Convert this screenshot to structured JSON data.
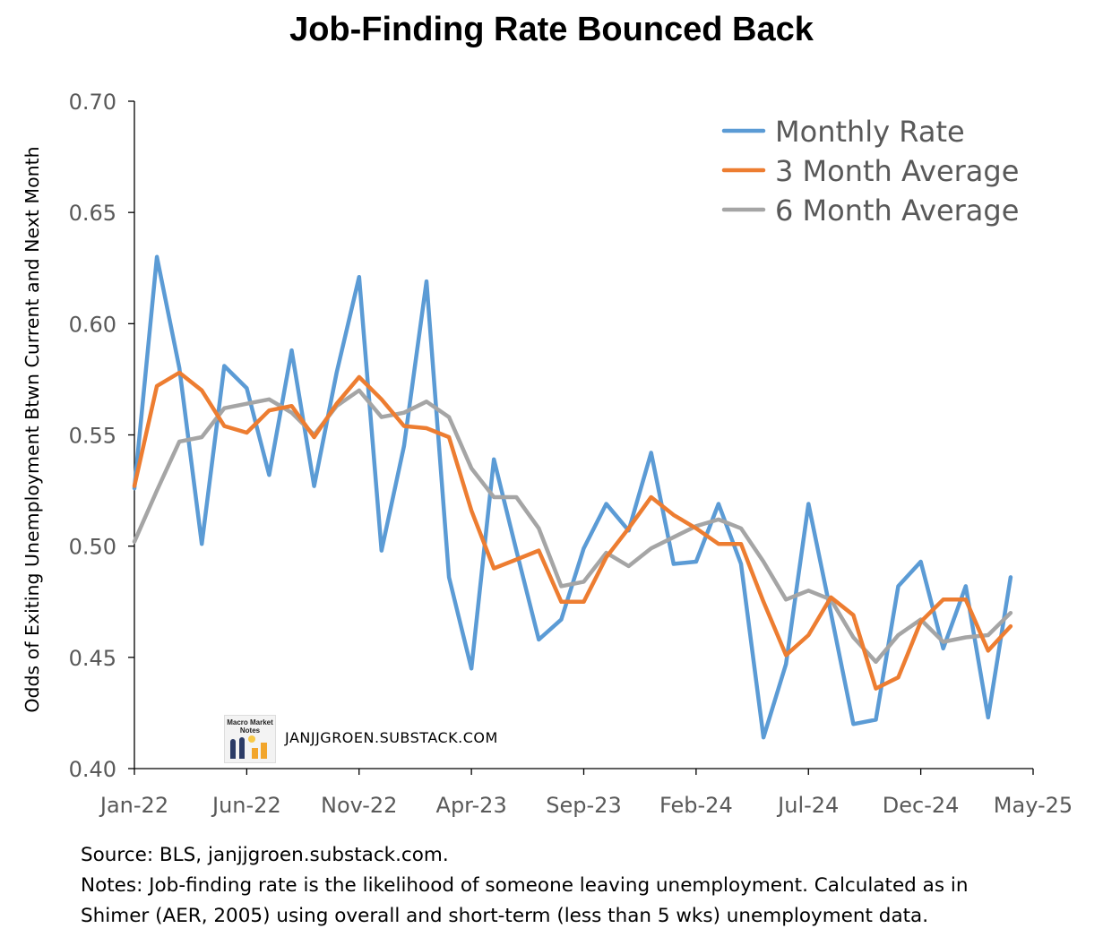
{
  "chart_data": {
    "type": "line",
    "title": "Job-Finding Rate Bounced Back",
    "ylabel": "Odds of Exiting Unemployment Btwn Current and Next Month",
    "xlabel": "",
    "ylim": [
      0.4,
      0.7
    ],
    "yticks": [
      "0.40",
      "0.45",
      "0.50",
      "0.55",
      "0.60",
      "0.65",
      "0.70"
    ],
    "xtick_labels": [
      "Jan-22",
      "Jun-22",
      "Nov-22",
      "Apr-23",
      "Sep-23",
      "Feb-24",
      "Jul-24",
      "Dec-24",
      "May-25"
    ],
    "x": [
      "Jan-22",
      "Feb-22",
      "Mar-22",
      "Apr-22",
      "May-22",
      "Jun-22",
      "Jul-22",
      "Aug-22",
      "Sep-22",
      "Oct-22",
      "Nov-22",
      "Dec-22",
      "Jan-23",
      "Feb-23",
      "Mar-23",
      "Apr-23",
      "May-23",
      "Jun-23",
      "Jul-23",
      "Aug-23",
      "Sep-23",
      "Oct-23",
      "Nov-23",
      "Dec-23",
      "Jan-24",
      "Feb-24",
      "Mar-24",
      "Apr-24",
      "May-24",
      "Jun-24",
      "Jul-24",
      "Aug-24",
      "Sep-24",
      "Oct-24",
      "Nov-24",
      "Dec-24",
      "Jan-25",
      "Feb-25",
      "Mar-25",
      "Apr-25"
    ],
    "series": [
      {
        "name": "Monthly Rate",
        "color": "#5b9bd5",
        "values": [
          0.526,
          0.63,
          0.58,
          0.501,
          0.581,
          0.571,
          0.532,
          0.588,
          0.527,
          0.578,
          0.621,
          0.498,
          0.545,
          0.619,
          0.486,
          0.445,
          0.539,
          0.498,
          0.458,
          0.467,
          0.499,
          0.519,
          0.507,
          0.542,
          0.492,
          0.493,
          0.519,
          0.492,
          0.414,
          0.447,
          0.519,
          0.47,
          0.42,
          0.422,
          0.482,
          0.493,
          0.454,
          0.482,
          0.423,
          0.486
        ]
      },
      {
        "name": "3 Month Average",
        "color": "#ed7d31",
        "values": [
          0.527,
          0.572,
          0.578,
          0.57,
          0.554,
          0.551,
          0.561,
          0.563,
          0.549,
          0.564,
          0.576,
          0.566,
          0.554,
          0.553,
          0.549,
          0.516,
          0.49,
          0.494,
          0.498,
          0.475,
          0.475,
          0.495,
          0.508,
          0.522,
          0.514,
          0.508,
          0.501,
          0.501,
          0.475,
          0.451,
          0.46,
          0.477,
          0.469,
          0.436,
          0.441,
          0.466,
          0.476,
          0.476,
          0.453,
          0.464
        ]
      },
      {
        "name": "6 Month Average",
        "color": "#a5a5a5",
        "values": [
          0.502,
          0.525,
          0.547,
          0.549,
          0.562,
          0.564,
          0.566,
          0.56,
          0.55,
          0.563,
          0.57,
          0.558,
          0.56,
          0.565,
          0.558,
          0.535,
          0.522,
          0.522,
          0.508,
          0.482,
          0.484,
          0.497,
          0.491,
          0.499,
          0.504,
          0.509,
          0.512,
          0.508,
          0.493,
          0.476,
          0.48,
          0.476,
          0.459,
          0.448,
          0.46,
          0.467,
          0.457,
          0.459,
          0.46,
          0.47
        ]
      }
    ],
    "legend_position": "top-right",
    "grid": false
  },
  "watermark": {
    "logo_text": "Macro Market Notes",
    "site": "JANJJGROEN.SUBSTACK.COM"
  },
  "footer": {
    "source": "Source: BLS, janjjgroen.substack.com.",
    "notes_line1": "Notes: Job-finding rate is the likelihood of someone leaving unemployment. Calculated as in",
    "notes_line2": "Shimer (AER, 2005) using overall and short-term (less than 5 wks) unemployment data."
  }
}
